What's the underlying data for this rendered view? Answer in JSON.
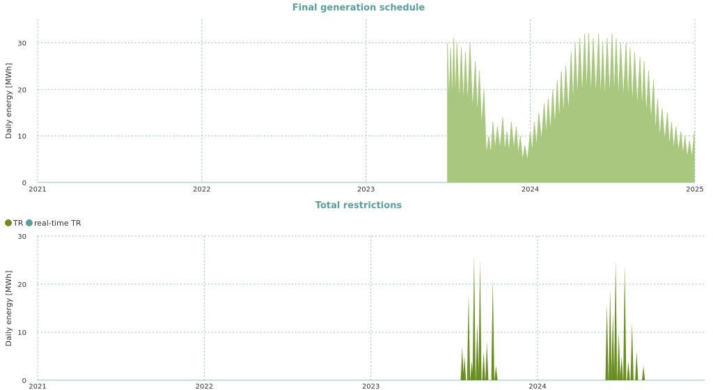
{
  "chart_data": [
    {
      "type": "area",
      "title": "Final generation schedule",
      "ylabel": "Daily energy [MWh]",
      "xlabel": "",
      "x_ticks": [
        "2021",
        "2022",
        "2023",
        "2024",
        "2025"
      ],
      "y_ticks": [
        0,
        10,
        20,
        30
      ],
      "xlim": [
        "2021-01-01",
        "2025-01-01"
      ],
      "ylim": [
        0,
        35
      ],
      "grid": true,
      "color": "#a9c77e",
      "series": [
        {
          "x": [
            "2023-07-01",
            "2023-07-08",
            "2023-07-15",
            "2023-07-22",
            "2023-08-01",
            "2023-08-10",
            "2023-08-20",
            "2023-09-01",
            "2023-09-10",
            "2023-09-20",
            "2023-10-01",
            "2023-10-10",
            "2023-10-20",
            "2023-11-01",
            "2023-11-10",
            "2023-11-20",
            "2023-12-01",
            "2023-12-10",
            "2023-12-20",
            "2024-01-01",
            "2024-01-10",
            "2024-01-20",
            "2024-02-01",
            "2024-02-10",
            "2024-02-20",
            "2024-03-01",
            "2024-03-10",
            "2024-03-20",
            "2024-04-01",
            "2024-04-10",
            "2024-04-20",
            "2024-05-01",
            "2024-05-10",
            "2024-05-20",
            "2024-06-01",
            "2024-06-10",
            "2024-06-20",
            "2024-07-01",
            "2024-07-10",
            "2024-07-20",
            "2024-08-01",
            "2024-08-10",
            "2024-08-20",
            "2024-09-01",
            "2024-09-10",
            "2024-09-20",
            "2024-10-01",
            "2024-10-10",
            "2024-10-20",
            "2024-11-01",
            "2024-11-10",
            "2024-11-20",
            "2024-12-01",
            "2024-12-10",
            "2024-12-20",
            "2024-12-31"
          ],
          "values": [
            30,
            29,
            31,
            30,
            29,
            28,
            30,
            26,
            24,
            20,
            10,
            13,
            12,
            14,
            11,
            13,
            12,
            10,
            8,
            11,
            13,
            15,
            17,
            18,
            20,
            22,
            24,
            25,
            28,
            30,
            31,
            32,
            32,
            31,
            32,
            30,
            31,
            32,
            31,
            30,
            30,
            29,
            28,
            27,
            26,
            24,
            22,
            18,
            16,
            15,
            13,
            12,
            11,
            10,
            9,
            11
          ]
        }
      ]
    },
    {
      "type": "area",
      "title": "Total restrictions",
      "ylabel": "Daily energy [MWh]",
      "xlabel": "",
      "x_ticks": [
        "2021",
        "2022",
        "2023",
        "2024"
      ],
      "y_ticks": [
        0,
        10,
        20,
        30
      ],
      "xlim": [
        "2021-01-01",
        "2025-01-01"
      ],
      "ylim": [
        0,
        30
      ],
      "grid": true,
      "legend": "top-left",
      "series": [
        {
          "name": "TR",
          "color": "#6b8e23",
          "x": [
            "2023-07-20",
            "2023-07-25",
            "2023-08-03",
            "2023-08-10",
            "2023-08-15",
            "2023-08-22",
            "2023-08-28",
            "2023-09-05",
            "2023-09-12",
            "2023-09-25",
            "2023-10-02",
            "2024-06-01",
            "2024-06-08",
            "2024-06-14",
            "2024-06-20",
            "2024-06-27",
            "2024-07-03",
            "2024-07-10",
            "2024-07-18",
            "2024-07-26",
            "2024-08-05",
            "2024-08-20"
          ],
          "values": [
            7,
            5,
            18,
            4,
            26,
            12,
            25,
            6,
            8,
            21,
            3,
            16,
            19,
            14,
            25,
            10,
            5,
            24,
            4,
            12,
            6,
            3
          ]
        },
        {
          "name": "real-time TR",
          "color": "#5b9e9e",
          "x": [],
          "values": []
        }
      ]
    }
  ]
}
